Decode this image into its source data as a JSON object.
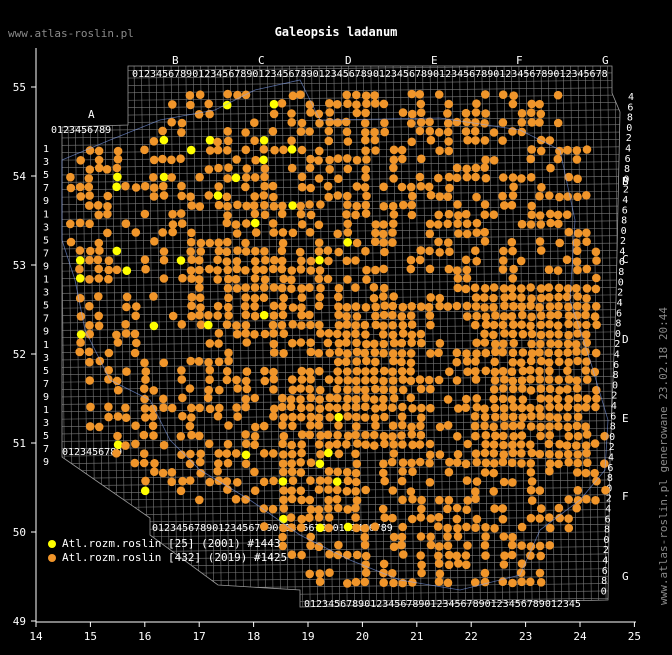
{
  "site_url": "www.atlas-roslin.pl",
  "title": "Galeopsis ladanum",
  "generated_label": "www.atlas-roslin.pl generowane 23.02.18 20:44",
  "legend": [
    {
      "label": "Atl.rozm.roslin [25] (2001) #1443",
      "color": "#ffff00"
    },
    {
      "label": "Atl.rozm.roslin [432] (2019) #1425",
      "color": "#f0952a"
    }
  ],
  "axes": {
    "x_ticks": [
      "14",
      "15",
      "16",
      "17",
      "18",
      "19",
      "20",
      "21",
      "22",
      "23",
      "24",
      "25"
    ],
    "y_ticks": [
      "55",
      "54",
      "53",
      "52",
      "51",
      "50",
      "49"
    ]
  },
  "grid_labels": {
    "top_letters": [
      "B",
      "C",
      "D",
      "E",
      "F",
      "G"
    ],
    "left_letters": [
      "A"
    ],
    "right_letters": [
      "B",
      "C",
      "D",
      "E",
      "F",
      "G"
    ],
    "top_digits": "0123456789012345678901234567890123456789012345678901234567890123456789012345678",
    "bottom_digits_left": "0123456789012345678901234567890123456789",
    "bottom_digits_right": "0123456789012345678901234567890123456789012345",
    "left_digits_top": "0123456789",
    "left_digits_bottom": "0123456789",
    "left_vertical_digits": "1357913579135791357913579",
    "right_vertical_digits": "4680246802468024680246802468024680246802468024680"
  }
}
